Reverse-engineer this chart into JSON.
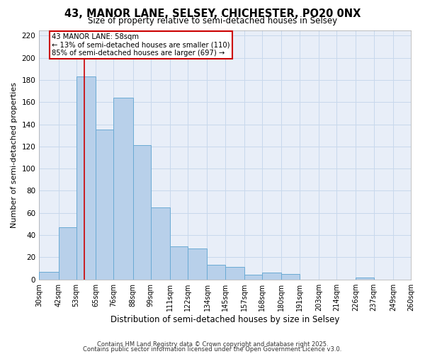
{
  "title1": "43, MANOR LANE, SELSEY, CHICHESTER, PO20 0NX",
  "title2": "Size of property relative to semi-detached houses in Selsey",
  "xlabel": "Distribution of semi-detached houses by size in Selsey",
  "ylabel": "Number of semi-detached properties",
  "bins": [
    30,
    42,
    53,
    65,
    76,
    88,
    99,
    111,
    122,
    134,
    145,
    157,
    168,
    180,
    191,
    203,
    214,
    226,
    237,
    249,
    260
  ],
  "counts": [
    7,
    47,
    183,
    135,
    164,
    121,
    65,
    30,
    28,
    13,
    11,
    4,
    6,
    5,
    0,
    0,
    0,
    2,
    0,
    0
  ],
  "bar_facecolor": "#b8d0ea",
  "bar_edgecolor": "#6aaad4",
  "bar_linewidth": 0.7,
  "vline_x": 58,
  "vline_color": "#cc0000",
  "annotation_line1": "43 MANOR LANE: 58sqm",
  "annotation_line2": "← 13% of semi-detached houses are smaller (110)",
  "annotation_line3": "85% of semi-detached houses are larger (697) →",
  "annotation_box_edgecolor": "#cc0000",
  "ylim": [
    0,
    225
  ],
  "yticks": [
    0,
    20,
    40,
    60,
    80,
    100,
    120,
    140,
    160,
    180,
    200,
    220
  ],
  "grid_color": "#c8d8ec",
  "bg_color": "#e8eef8",
  "footnote1": "Contains HM Land Registry data © Crown copyright and database right 2025.",
  "footnote2": "Contains public sector information licensed under the Open Government Licence v3.0.",
  "tick_labels": [
    "30sqm",
    "42sqm",
    "53sqm",
    "65sqm",
    "76sqm",
    "88sqm",
    "99sqm",
    "111sqm",
    "122sqm",
    "134sqm",
    "145sqm",
    "157sqm",
    "168sqm",
    "180sqm",
    "191sqm",
    "203sqm",
    "214sqm",
    "226sqm",
    "237sqm",
    "249sqm",
    "260sqm"
  ]
}
